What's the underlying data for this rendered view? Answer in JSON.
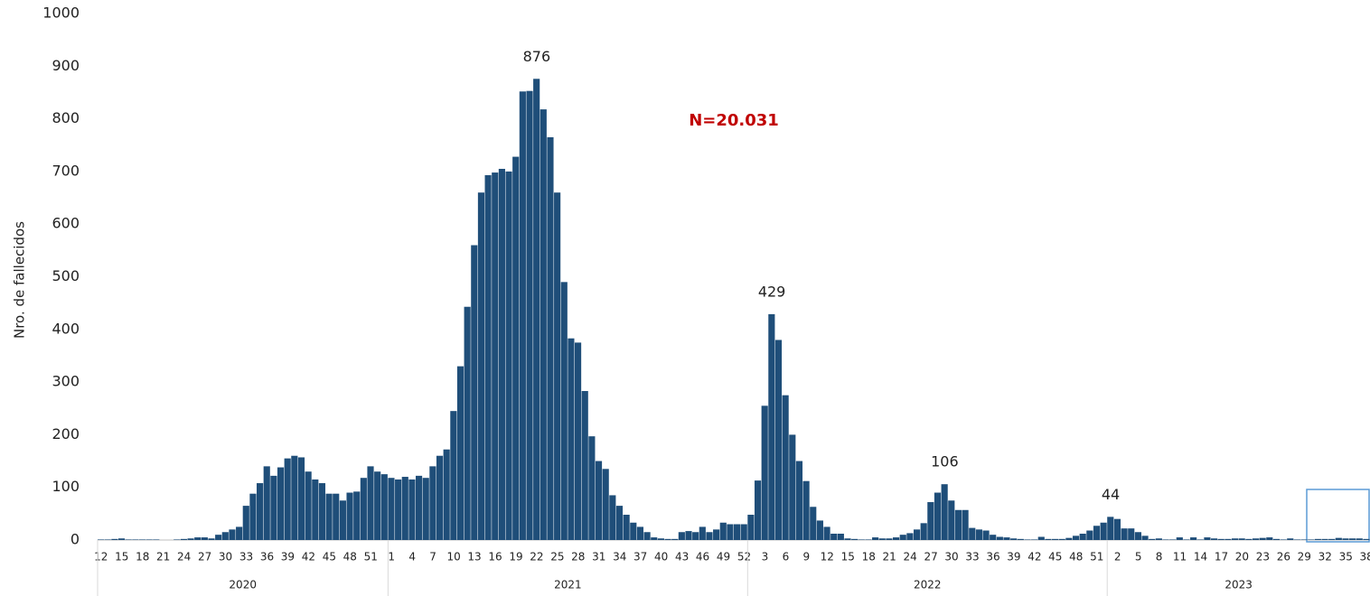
{
  "chart_data": {
    "type": "bar",
    "y_label": "Nro. de fallecidos",
    "annotation": "N=20.031",
    "color": "#1f4e79",
    "ylim": [
      0,
      1000
    ],
    "yticks": [
      0,
      100,
      200,
      300,
      400,
      500,
      600,
      700,
      800,
      900,
      1000
    ],
    "years": [
      "2020",
      "2021",
      "2022",
      "2023"
    ],
    "categories": [
      "12",
      null,
      null,
      "15",
      null,
      null,
      "18",
      null,
      null,
      "21",
      null,
      null,
      "24",
      null,
      null,
      "27",
      null,
      null,
      "30",
      null,
      null,
      "33",
      null,
      null,
      "36",
      null,
      null,
      "39",
      null,
      null,
      "42",
      null,
      null,
      "45",
      null,
      null,
      "48",
      null,
      null,
      "51",
      null,
      null,
      "1",
      null,
      null,
      "4",
      null,
      null,
      "7",
      null,
      null,
      "10",
      null,
      null,
      "13",
      null,
      null,
      "16",
      null,
      null,
      "19",
      null,
      null,
      "22",
      null,
      null,
      "25",
      null,
      null,
      "28",
      null,
      null,
      "31",
      null,
      null,
      "34",
      null,
      null,
      "37",
      null,
      null,
      "40",
      null,
      null,
      "43",
      null,
      null,
      "46",
      null,
      null,
      "49",
      null,
      null,
      "52",
      null,
      null,
      "3",
      null,
      null,
      "6",
      null,
      null,
      "9",
      null,
      null,
      "12",
      null,
      null,
      "15",
      null,
      null,
      "18",
      null,
      null,
      "21",
      null,
      null,
      "24",
      null,
      null,
      "27",
      null,
      null,
      "30",
      null,
      null,
      "33",
      null,
      null,
      "36",
      null,
      null,
      "39",
      null,
      null,
      "42",
      null,
      null,
      "45",
      null,
      null,
      "48",
      null,
      null,
      "51",
      null,
      null,
      "2",
      null,
      null,
      "5",
      null,
      null,
      "8",
      null,
      null,
      "11",
      null,
      null,
      "14",
      null,
      null,
      "17",
      null,
      null,
      "20",
      null,
      null,
      "23",
      null,
      null,
      "26",
      null,
      null,
      "29",
      null,
      null,
      "32",
      null,
      null,
      "35",
      null,
      null,
      "38"
    ],
    "values": [
      1,
      1,
      2,
      3,
      1,
      1,
      1,
      1,
      1,
      0,
      0,
      1,
      2,
      3,
      5,
      5,
      3,
      10,
      15,
      20,
      25,
      65,
      88,
      108,
      140,
      122,
      138,
      155,
      160,
      157,
      130,
      115,
      108,
      88,
      88,
      75,
      90,
      92,
      118,
      140,
      130,
      125,
      118,
      115,
      120,
      115,
      122,
      118,
      140,
      160,
      172,
      245,
      330,
      443,
      560,
      660,
      693,
      698,
      705,
      700,
      728,
      852,
      853,
      876,
      818,
      765,
      660,
      490,
      383,
      375,
      283,
      197,
      150,
      135,
      85,
      65,
      48,
      33,
      25,
      15,
      5,
      3,
      2,
      2,
      15,
      17,
      15,
      25,
      15,
      20,
      33,
      30,
      30,
      30,
      48,
      113,
      255,
      429,
      380,
      275,
      200,
      150,
      112,
      63,
      37,
      25,
      12,
      12,
      3,
      2,
      1,
      1,
      5,
      3,
      3,
      5,
      10,
      13,
      20,
      32,
      72,
      90,
      106,
      75,
      57,
      57,
      23,
      20,
      18,
      10,
      6,
      5,
      3,
      2,
      1,
      1,
      6,
      2,
      2,
      2,
      4,
      8,
      12,
      18,
      27,
      33,
      44,
      40,
      22,
      22,
      15,
      8,
      2,
      3,
      1,
      1,
      5,
      1,
      5,
      1,
      5,
      3,
      2,
      2,
      3,
      3,
      2,
      3,
      4,
      5,
      2,
      1,
      3,
      1,
      1,
      1,
      2,
      2,
      2,
      4,
      3,
      3,
      3,
      2
    ],
    "value_labels": [
      null,
      null,
      null,
      null,
      null,
      null,
      null,
      null,
      null,
      null,
      null,
      null,
      null,
      null,
      null,
      null,
      null,
      null,
      null,
      null,
      null,
      null,
      null,
      null,
      null,
      null,
      null,
      null,
      null,
      null,
      null,
      null,
      null,
      null,
      null,
      null,
      null,
      null,
      null,
      null,
      null,
      null,
      null,
      null,
      null,
      null,
      null,
      null,
      null,
      null,
      null,
      null,
      null,
      null,
      null,
      null,
      null,
      null,
      null,
      null,
      null,
      null,
      null,
      "876",
      null,
      null,
      null,
      null,
      null,
      null,
      null,
      null,
      null,
      null,
      null,
      null,
      null,
      null,
      null,
      null,
      null,
      null,
      null,
      null,
      null,
      null,
      null,
      null,
      null,
      null,
      null,
      null,
      null,
      null,
      null,
      null,
      null,
      "429",
      null,
      null,
      null,
      null,
      null,
      null,
      null,
      null,
      null,
      null,
      null,
      null,
      null,
      null,
      null,
      null,
      null,
      null,
      null,
      null,
      null,
      null,
      null,
      null,
      "106",
      null,
      null,
      null,
      null,
      null,
      null,
      null,
      null,
      null,
      null,
      null,
      null,
      null,
      null,
      null,
      null,
      null,
      null,
      null,
      null,
      null,
      null,
      null,
      "44",
      null,
      null,
      null,
      null,
      null,
      null,
      null,
      null,
      null,
      null,
      null,
      null,
      null,
      null,
      null,
      null,
      null,
      null,
      null,
      null,
      null,
      null,
      null,
      null,
      null,
      null,
      null,
      null,
      null,
      null,
      null,
      null,
      null,
      null,
      null,
      null,
      null
    ]
  }
}
